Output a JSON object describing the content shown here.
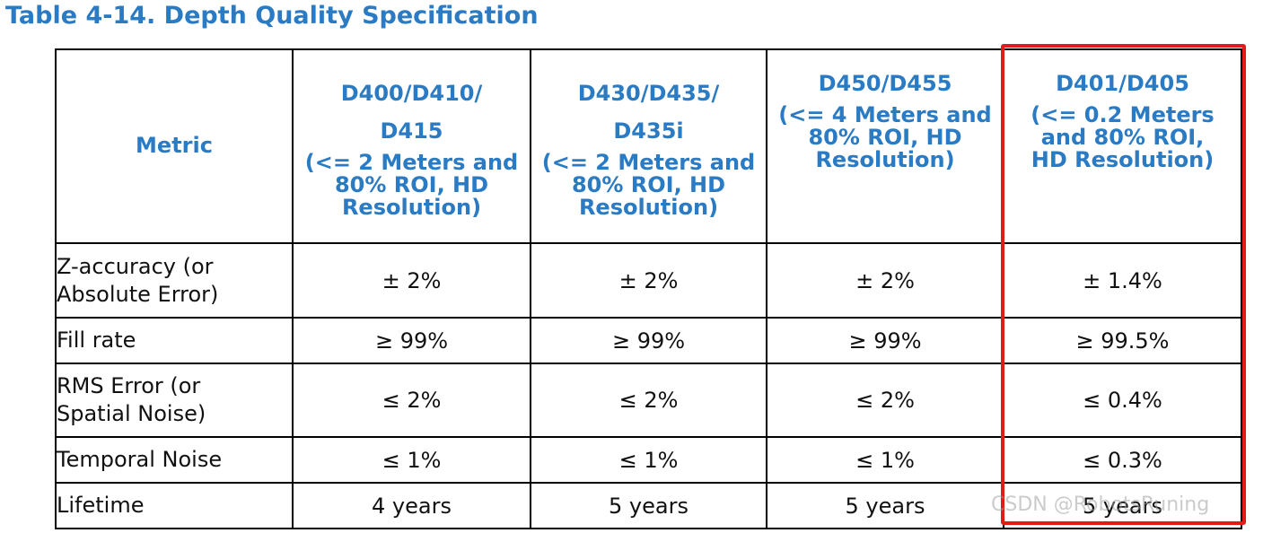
{
  "title": "Table 4-14. Depth Quality Specification",
  "header": {
    "metric": "Metric",
    "columns": [
      {
        "line1": "D400/D410/",
        "line2": "D415",
        "note1": "(<= 2 Meters and",
        "note2": "80% ROI, HD",
        "note3": "Resolution)"
      },
      {
        "line1": "D430/D435/",
        "line2": "D435i",
        "note1": "(<= 2 Meters and",
        "note2": "80% ROI, HD",
        "note3": "Resolution)"
      },
      {
        "line1": "D450/D455",
        "note1": "(<= 4 Meters and",
        "note2": "80% ROI, HD",
        "note3": "Resolution)"
      },
      {
        "line1": "D401/D405",
        "note1": "(<= 0.2 Meters",
        "note2": "and 80% ROI,",
        "note3": "HD Resolution)"
      }
    ]
  },
  "rows": [
    {
      "metric_line1": "Z-accuracy (or",
      "metric_line2": "Absolute Error)",
      "values": [
        "± 2%",
        "± 2%",
        "± 2%",
        "± 1.4%"
      ]
    },
    {
      "metric_line1": "Fill rate",
      "values": [
        "≥ 99%",
        "≥ 99%",
        "≥ 99%",
        "≥ 99.5%"
      ]
    },
    {
      "metric_line1": "RMS Error (or",
      "metric_line2": "Spatial Noise)",
      "values": [
        "≤ 2%",
        "≤ 2%",
        "≤ 2%",
        "≤ 0.4%"
      ]
    },
    {
      "metric_line1": "Temporal Noise",
      "values": [
        "≤ 1%",
        "≤ 1%",
        "≤ 1%",
        "≤ 0.3%"
      ]
    },
    {
      "metric_line1": "Lifetime",
      "values": [
        "4 years",
        "5 years",
        "5 years",
        "5 years"
      ]
    }
  ],
  "watermark": "CSDN @RobotsRuning",
  "colors": {
    "heading": "#2a7bc4",
    "highlight": "#e01b1b",
    "border": "#000000"
  }
}
